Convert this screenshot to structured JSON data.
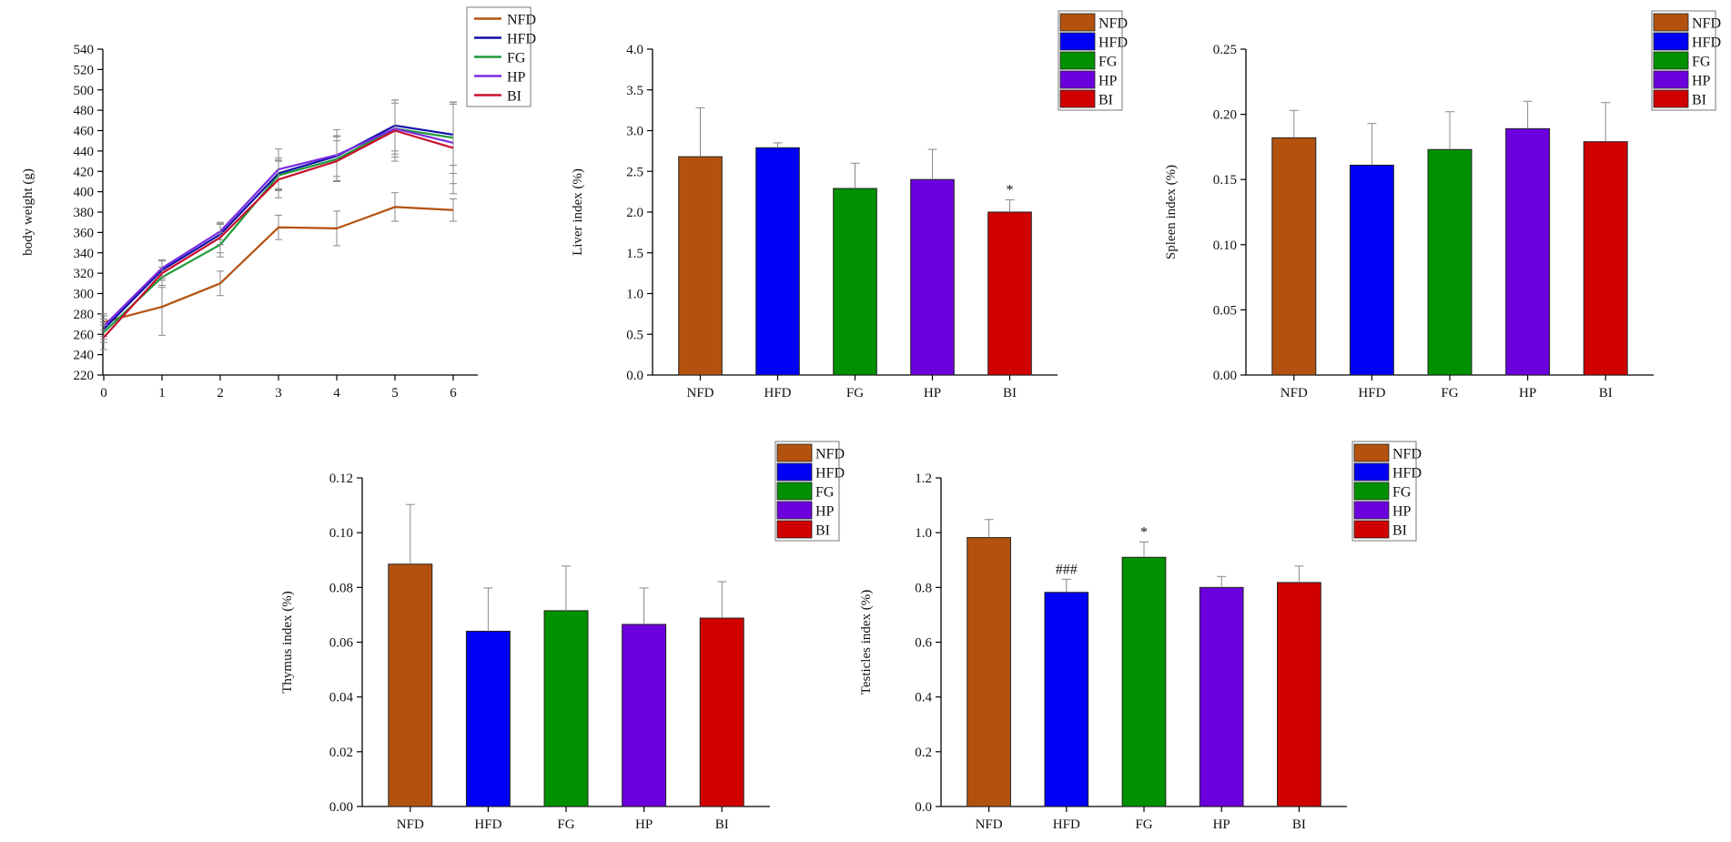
{
  "colors": {
    "NFD": "#B3520E",
    "HFD": "#0000F5",
    "FG": "#009000",
    "HP": "#6C00DD",
    "BI": "#D00000",
    "HFD_line": "#1010A8",
    "FG_line": "#1E9A3A",
    "HP_line": "#7A2BE2",
    "BI_line": "#C8102E"
  },
  "chart_data": [
    {
      "type": "line",
      "ylabel": "body weight (g)",
      "xlabel": "",
      "x": [
        0,
        1,
        2,
        3,
        4,
        5,
        6
      ],
      "x_tick_labels": [
        "0",
        "1",
        "2",
        "3",
        "4",
        "5",
        "6"
      ],
      "ylim": [
        220,
        540
      ],
      "y_ticks": [
        "220",
        "240",
        "260",
        "280",
        "300",
        "320",
        "340",
        "360",
        "380",
        "400",
        "420",
        "440",
        "460",
        "480",
        "500",
        "520",
        "540"
      ],
      "legend": [
        "NFD",
        "HFD",
        "FG",
        "HP",
        "BI"
      ],
      "legend_position": "top-right",
      "series": [
        {
          "name": "NFD",
          "values": [
            272,
            287,
            310,
            365,
            364,
            385,
            382
          ],
          "errors": [
            8,
            28,
            12,
            12,
            17,
            14,
            11
          ]
        },
        {
          "name": "HFD",
          "values": [
            265,
            323,
            358,
            418,
            435,
            465,
            456
          ],
          "errors": [
            10,
            10,
            10,
            15,
            20,
            25,
            30
          ]
        },
        {
          "name": "FG",
          "values": [
            262,
            316,
            348,
            416,
            432,
            462,
            453
          ],
          "errors": [
            10,
            10,
            12,
            15,
            22,
            25,
            35
          ]
        },
        {
          "name": "HP",
          "values": [
            268,
            325,
            361,
            422,
            436,
            462,
            448
          ],
          "errors": [
            10,
            8,
            8,
            20,
            25,
            28,
            40
          ]
        },
        {
          "name": "BI",
          "values": [
            257,
            320,
            355,
            412,
            430,
            460,
            443
          ],
          "errors": [
            12,
            12,
            15,
            18,
            20,
            30,
            45
          ]
        }
      ]
    },
    {
      "type": "bar",
      "ylabel": "Liver index (%)",
      "categories": [
        "NFD",
        "HFD",
        "FG",
        "HP",
        "BI"
      ],
      "values": [
        2.68,
        2.79,
        2.29,
        2.4,
        2.0
      ],
      "errors": [
        0.6,
        0.06,
        0.31,
        0.37,
        0.15
      ],
      "annotations": [
        "",
        "",
        "",
        "",
        "*"
      ],
      "ylim": [
        0,
        4.0
      ],
      "y_ticks": [
        "0.0",
        "0.5",
        "1.0",
        "1.5",
        "2.0",
        "2.5",
        "3.0",
        "3.5",
        "4.0"
      ],
      "legend": [
        "NFD",
        "HFD",
        "FG",
        "HP",
        "BI"
      ],
      "legend_position": "top-right"
    },
    {
      "type": "bar",
      "ylabel": "Spleen index (%)",
      "categories": [
        "NFD",
        "HFD",
        "FG",
        "HP",
        "BI"
      ],
      "values": [
        0.182,
        0.161,
        0.173,
        0.189,
        0.179
      ],
      "errors": [
        0.021,
        0.032,
        0.029,
        0.021,
        0.03
      ],
      "annotations": [
        "",
        "",
        "",
        "",
        ""
      ],
      "ylim": [
        0,
        0.25
      ],
      "y_ticks": [
        "0.00",
        "0.05",
        "0.10",
        "0.15",
        "0.20",
        "0.25"
      ],
      "legend": [
        "NFD",
        "HFD",
        "FG",
        "HP",
        "BI"
      ],
      "legend_position": "top-right"
    },
    {
      "type": "bar",
      "ylabel": "Thymus index (%)",
      "categories": [
        "NFD",
        "HFD",
        "FG",
        "HP",
        "BI"
      ],
      "values": [
        0.0885,
        0.064,
        0.0715,
        0.0665,
        0.0688
      ],
      "errors": [
        0.0218,
        0.0158,
        0.0163,
        0.0133,
        0.0133
      ],
      "annotations": [
        "",
        "",
        "",
        "",
        ""
      ],
      "ylim": [
        0,
        0.12
      ],
      "y_ticks": [
        "0.00",
        "0.02",
        "0.04",
        "0.06",
        "0.08",
        "0.10",
        "0.12"
      ],
      "legend": [
        "NFD",
        "HFD",
        "FG",
        "HP",
        "BI"
      ],
      "legend_position": "top-right"
    },
    {
      "type": "bar",
      "ylabel": "Testicles index (%)",
      "categories": [
        "NFD",
        "HFD",
        "FG",
        "HP",
        "BI"
      ],
      "values": [
        0.982,
        0.782,
        0.91,
        0.8,
        0.818
      ],
      "errors": [
        0.066,
        0.048,
        0.056,
        0.04,
        0.06
      ],
      "annotations": [
        "",
        "###",
        "*",
        "",
        ""
      ],
      "ylim": [
        0,
        1.2
      ],
      "y_ticks": [
        "0.0",
        "0.2",
        "0.4",
        "0.6",
        "0.8",
        "1.0",
        "1.2"
      ],
      "legend": [
        "NFD",
        "HFD",
        "FG",
        "HP",
        "BI"
      ],
      "legend_position": "top-right"
    }
  ]
}
